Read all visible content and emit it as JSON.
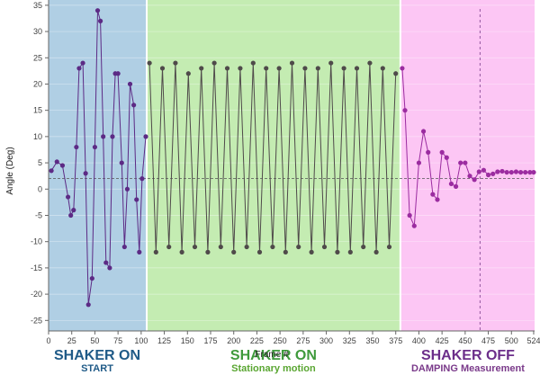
{
  "chart_data": {
    "type": "scatter",
    "title": "",
    "xlabel": "Frame #",
    "ylabel": "Angle (Deg)",
    "xlim": [
      0,
      525
    ],
    "ylim": [
      -27,
      36
    ],
    "x_ticks": [
      0,
      25,
      50,
      75,
      100,
      125,
      150,
      175,
      200,
      225,
      250,
      275,
      300,
      325,
      350,
      375,
      400,
      425,
      450,
      475,
      500,
      524
    ],
    "y_ticks": [
      -25,
      -20,
      -15,
      -10,
      -5,
      0,
      5,
      10,
      15,
      20,
      25,
      30,
      35
    ],
    "reference_line_y": 2,
    "marker_line_x": 466,
    "grid": true,
    "regions": [
      {
        "x_start": 0,
        "x_end": 105,
        "color": "#b0cfe4",
        "label": "SHAKER ON",
        "sublabel": "START",
        "label_color": "#1f5a87",
        "sublabel_color": "#1f5a87"
      },
      {
        "x_start": 107,
        "x_end": 379,
        "color": "#c4ecb2",
        "label": "SHAKER ON",
        "sublabel": "Stationary motion",
        "label_color": "#3f9a3c",
        "sublabel_color": "#5aa632"
      },
      {
        "x_start": 381,
        "x_end": 525,
        "color": "#fcc6f4",
        "label": "SHAKER OFF",
        "sublabel": "DAMPING Measurement",
        "label_color": "#6c2e8a",
        "sublabel_color": "#7a3a8a"
      }
    ],
    "series": [
      {
        "color": "#5c2a85",
        "x": [
          3,
          9,
          15,
          21,
          24,
          27,
          30,
          33,
          37,
          40,
          43,
          47,
          50,
          53,
          56,
          59,
          62,
          66,
          69,
          72,
          75,
          79,
          82,
          85,
          88,
          92,
          95,
          98,
          101,
          105
        ],
        "y": [
          3.5,
          5.2,
          4.5,
          -1.5,
          -5,
          -4,
          8,
          23,
          24,
          3,
          -22,
          -17,
          8,
          34,
          32,
          10,
          -14,
          -15,
          10,
          22,
          22,
          5,
          -11,
          0,
          20,
          16,
          -2,
          -12,
          2,
          10
        ]
      },
      {
        "color": "#4f4a4a",
        "x": [
          109,
          116,
          123,
          130,
          137,
          144,
          151,
          158,
          165,
          172,
          179,
          186,
          193,
          200,
          207,
          214,
          221,
          228,
          235,
          242,
          249,
          256,
          263,
          270,
          277,
          284,
          291,
          298,
          305,
          312,
          319,
          326,
          333,
          340,
          347,
          354,
          361,
          368,
          375
        ],
        "y": [
          24,
          -12,
          23,
          -11,
          24,
          -12,
          22,
          -11,
          23,
          -12,
          24,
          -11,
          23,
          -12,
          23,
          -11,
          24,
          -12,
          23,
          -11,
          23,
          -12,
          24,
          -11,
          23,
          -12,
          23,
          -11,
          24,
          -12,
          23,
          -12,
          23,
          -11,
          24,
          -12,
          23,
          -11,
          22
        ]
      },
      {
        "color": "#9b2ca0",
        "x": [
          382,
          385,
          390,
          395,
          400,
          405,
          410,
          415,
          420,
          425,
          430,
          435,
          440,
          445,
          450,
          455,
          460,
          465,
          470,
          475,
          480,
          485,
          490,
          495,
          500,
          505,
          510,
          515,
          520,
          524
        ],
        "y": [
          23,
          15,
          -5,
          -7,
          5,
          11,
          7,
          -1,
          -2,
          7,
          6,
          1,
          0.5,
          5,
          5,
          2.5,
          1.8,
          3.3,
          3.6,
          2.7,
          2.9,
          3.3,
          3.4,
          3.2,
          3.2,
          3.3,
          3.2,
          3.2,
          3.2,
          3.2
        ]
      }
    ]
  }
}
